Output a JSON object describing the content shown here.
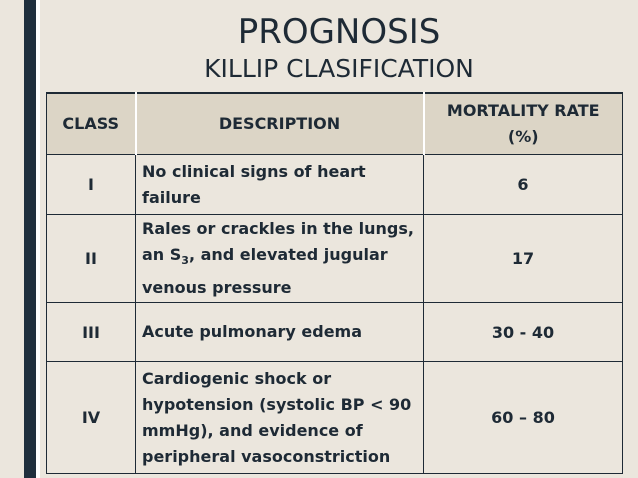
{
  "slide": {
    "title": "PROGNOSIS",
    "subtitle": "KILLIP CLASIFICATION"
  },
  "table": {
    "headers": [
      "CLASS",
      "DESCRIPTION",
      "MORTALITY RATE (%)"
    ],
    "rows": [
      {
        "class": "I",
        "description": "No clinical signs of heart failure",
        "mortality": "6"
      },
      {
        "class": "II",
        "description_before": "Rales or crackles in the lungs, an S",
        "description_sub": "3",
        "description_after": ", and elevated jugular venous pressure",
        "mortality": "17"
      },
      {
        "class": "III",
        "description": "Acute pulmonary edema",
        "mortality": "30 - 40"
      },
      {
        "class": "IV",
        "description": "Cardiogenic shock or hypotension (systolic BP < 90 mmHg), and evidence of peripheral vasoconstriction",
        "mortality": "60 – 80"
      }
    ]
  },
  "colors": {
    "background": "#ebe6dd",
    "accent_bar": "#1f2f3d",
    "header_fill": "#dcd5c6",
    "text": "#1e2a35"
  }
}
